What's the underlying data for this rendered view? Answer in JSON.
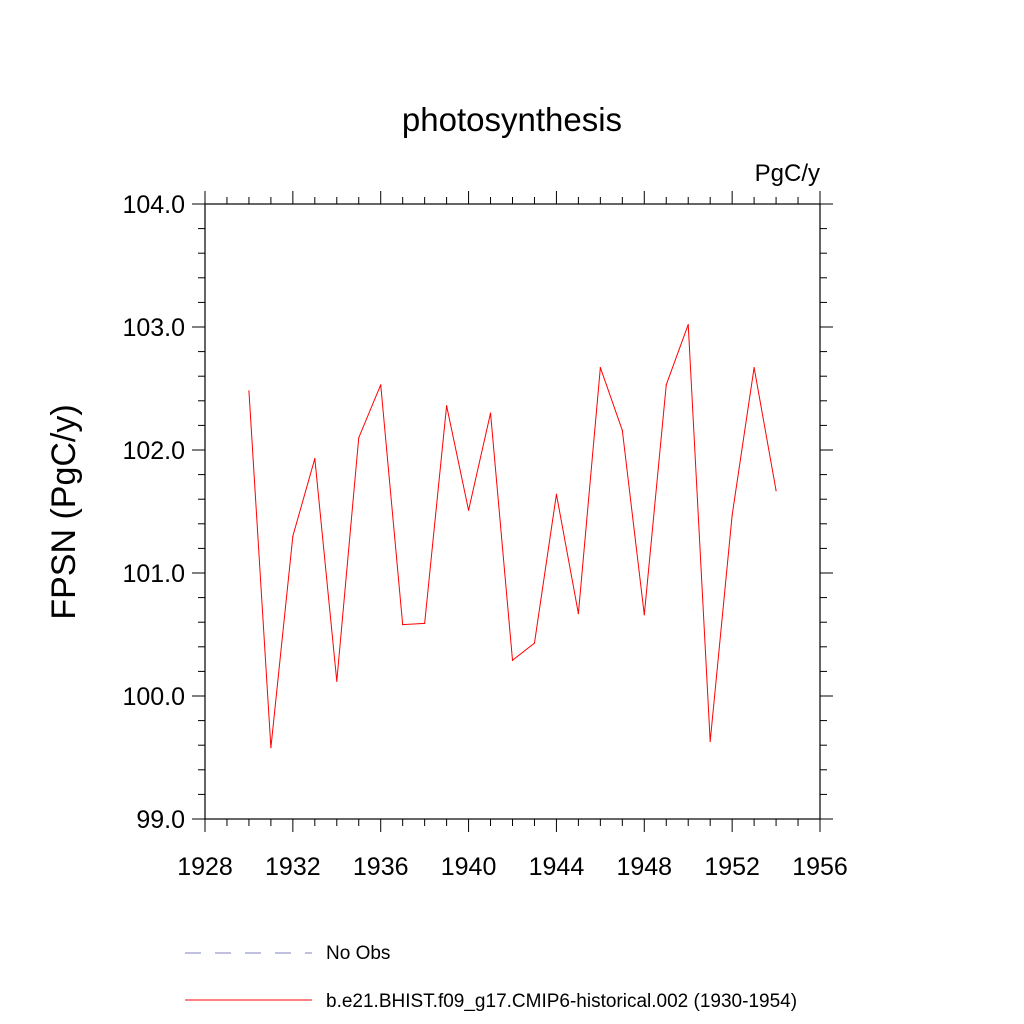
{
  "chart_data": {
    "type": "line",
    "title": "photosynthesis",
    "units": "PgC/y",
    "xlabel": "",
    "ylabel": "FPSN  (PgC/y)",
    "xlim": [
      1928,
      1956
    ],
    "ylim": [
      99.0,
      104.0
    ],
    "x_ticks": [
      "1928",
      "1932",
      "1936",
      "1940",
      "1944",
      "1948",
      "1952",
      "1956"
    ],
    "y_ticks": [
      "99.0",
      "100.0",
      "101.0",
      "102.0",
      "103.0",
      "104.0"
    ],
    "grid": false,
    "series": [
      {
        "name": "b.e21.BHIST.f09_g17.CMIP6-historical.002 (1930-1954)",
        "color": "#ff0000",
        "style": "solid",
        "x": [
          1930,
          1931,
          1932,
          1933,
          1934,
          1935,
          1936,
          1937,
          1938,
          1939,
          1940,
          1941,
          1942,
          1943,
          1944,
          1945,
          1946,
          1947,
          1948,
          1949,
          1950,
          1951,
          1952,
          1953,
          1954
        ],
        "values": [
          102.48,
          99.58,
          101.3,
          101.93,
          100.12,
          102.1,
          102.53,
          100.58,
          100.59,
          102.36,
          101.51,
          102.3,
          100.29,
          100.43,
          101.64,
          100.67,
          102.67,
          102.16,
          100.66,
          102.53,
          103.02,
          99.63,
          101.47,
          102.67,
          101.67
        ]
      }
    ],
    "legend": [
      {
        "label": "No Obs",
        "color": "#8080c0",
        "style": "dashed"
      },
      {
        "label": "b.e21.BHIST.f09_g17.CMIP6-historical.002 (1930-1954)",
        "color": "#ff0000",
        "style": "solid"
      }
    ],
    "legend_position": "bottom"
  }
}
